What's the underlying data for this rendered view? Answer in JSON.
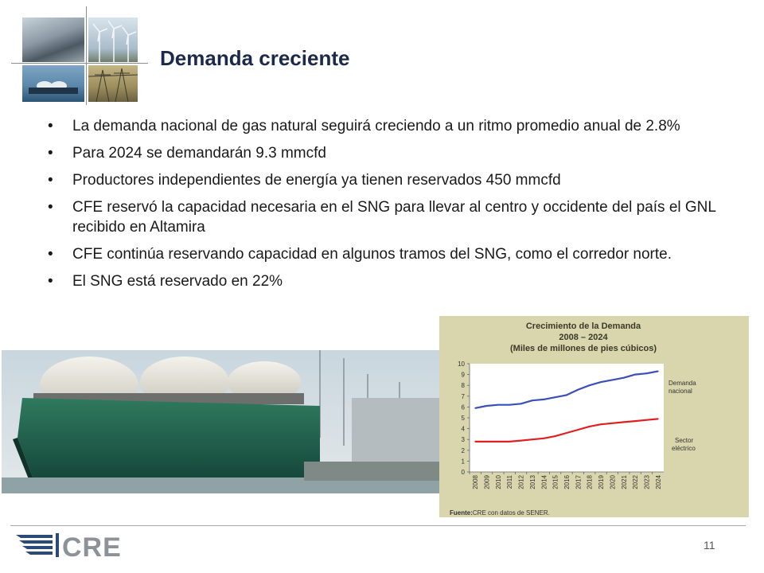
{
  "slide": {
    "title": "Demanda creciente",
    "bullets": [
      "La demanda nacional de gas natural seguirá creciendo a un ritmo promedio anual de 2.8%",
      "Para 2024 se demandarán 9.3 mmcfd",
      "Productores independientes de energía ya tienen reservados 450 mmcfd",
      "CFE reservó la capacidad necesaria en el SNG para llevar al centro y occidente del país el GNL recibido en Altamira",
      "CFE continúa reservando capacidad en algunos tramos del SNG, como el corredor norte.",
      "El SNG está reservado en 22%"
    ],
    "page_number": "11"
  },
  "logo": {
    "text": "CRE",
    "color": "#2c4a78"
  },
  "chart_data": {
    "type": "line",
    "title": "Crecimiento de la Demanda",
    "subtitle_lines": [
      "2008 – 2024",
      "(Miles de millones de pies cúbicos)"
    ],
    "categories": [
      "2008",
      "2009",
      "2010",
      "2011",
      "2012",
      "2013",
      "2014",
      "2015",
      "2016",
      "2017",
      "2018",
      "2019",
      "2020",
      "2021",
      "2022",
      "2023",
      "2024"
    ],
    "ylim": [
      0,
      10
    ],
    "yticks": [
      0,
      1,
      2,
      3,
      4,
      5,
      6,
      7,
      8,
      9,
      10
    ],
    "series": [
      {
        "name": "Demanda nacional",
        "label_lines": [
          "Demanda",
          "nacional"
        ],
        "color": "#3b4fb8",
        "values": [
          5.9,
          6.1,
          6.2,
          6.2,
          6.3,
          6.6,
          6.7,
          6.9,
          7.1,
          7.6,
          8.0,
          8.3,
          8.5,
          8.7,
          9.0,
          9.1,
          9.3
        ]
      },
      {
        "name": "Sector eléctrico",
        "label_lines": [
          "Sector",
          "eléctrico"
        ],
        "color": "#e02020",
        "values": [
          2.8,
          2.8,
          2.8,
          2.8,
          2.9,
          3.0,
          3.1,
          3.3,
          3.6,
          3.9,
          4.2,
          4.4,
          4.5,
          4.6,
          4.7,
          4.8,
          4.9
        ]
      }
    ],
    "source_label": "Fuente:",
    "source_text": "CRE con datos de SENER.",
    "grid": false
  }
}
